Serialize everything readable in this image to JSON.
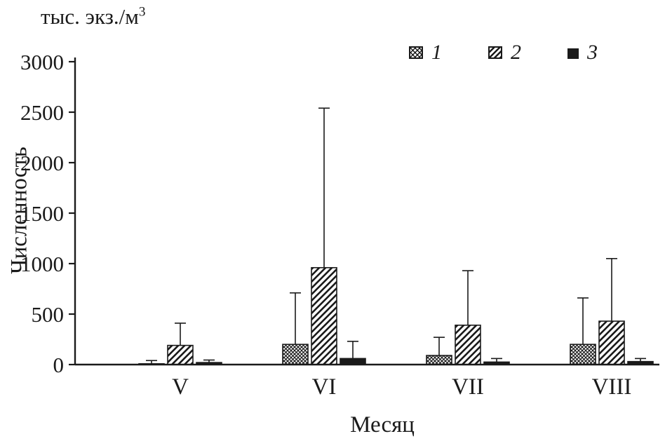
{
  "chart_data": {
    "type": "bar",
    "title": "",
    "unit_base": "тыс. экз./м",
    "unit_sup": "3",
    "ylabel": "Численность",
    "xlabel": "Месяц",
    "categories": [
      "V",
      "VI",
      "VII",
      "VIII"
    ],
    "ylim": [
      0,
      3000
    ],
    "yticks": [
      0,
      500,
      1000,
      1500,
      2000,
      2500,
      3000
    ],
    "grid": false,
    "legend_position": "top-right",
    "error_bars": "upper",
    "series": [
      {
        "name": "1",
        "pattern": "crosshatch",
        "values": [
          8,
          200,
          90,
          200
        ],
        "error_top": [
          40,
          710,
          270,
          660
        ]
      },
      {
        "name": "2",
        "pattern": "diagonal-hatch",
        "values": [
          190,
          960,
          390,
          430
        ],
        "error_top": [
          410,
          2540,
          930,
          1050
        ]
      },
      {
        "name": "3",
        "pattern": "solid",
        "values": [
          20,
          60,
          25,
          30
        ],
        "error_top": [
          45,
          230,
          60,
          60
        ]
      }
    ]
  },
  "colors": {
    "ink": "#1a1a1a",
    "background": "#ffffff"
  }
}
